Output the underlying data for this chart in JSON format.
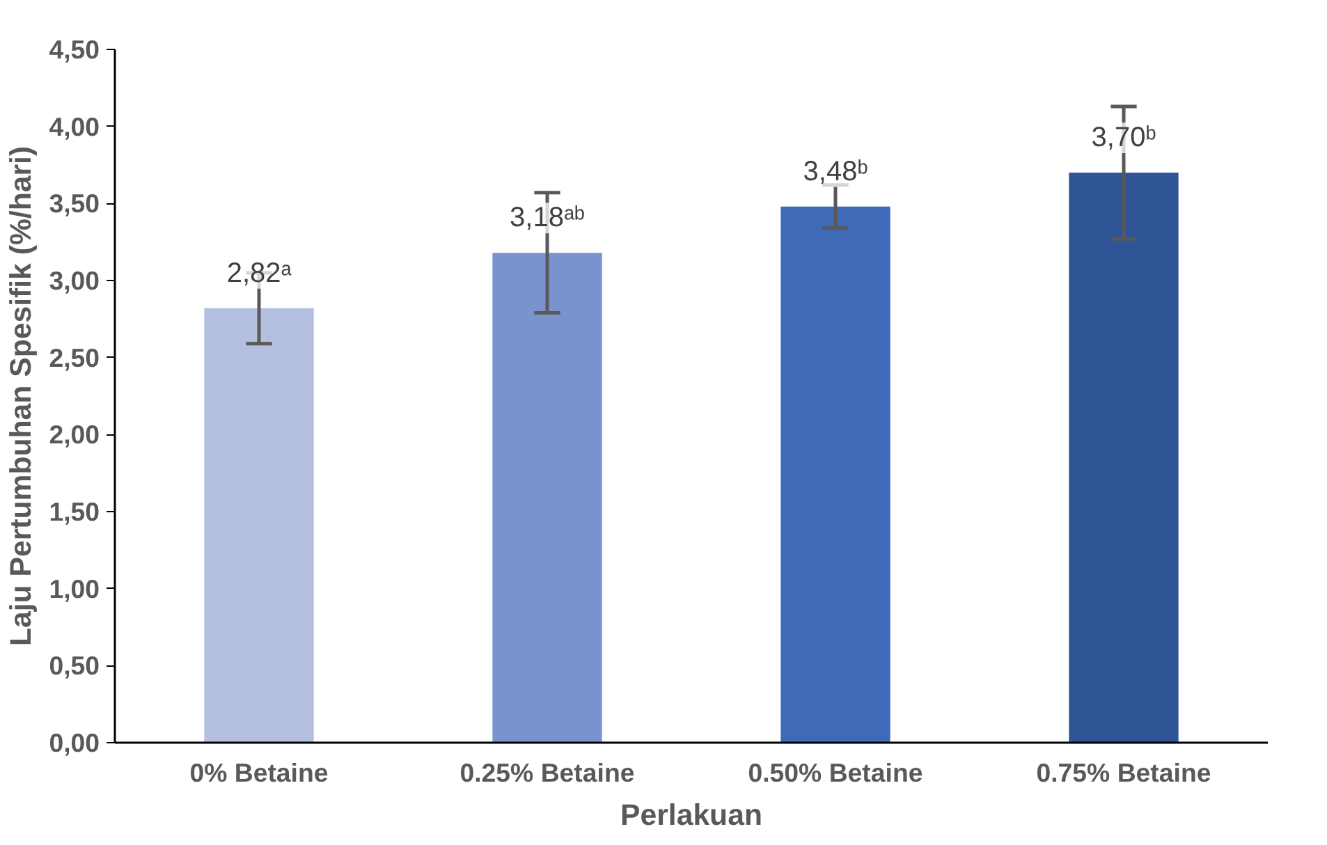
{
  "chart_data": {
    "type": "bar",
    "xlabel": "Perlakuan",
    "ylabel": "Laju Pertumbuhan Spesifik (%/hari)",
    "categories": [
      "0% Betaine",
      "0.25% Betaine",
      "0.50% Betaine",
      "0.75% Betaine"
    ],
    "values": [
      2.82,
      3.18,
      3.48,
      3.7
    ],
    "colors": [
      "#b4bfe0",
      "#7a93cf",
      "#3e6ab8",
      "#2f5597"
    ],
    "errors": [
      0.23,
      0.39,
      0.14,
      0.43
    ],
    "value_labels": [
      "2,82ᵃ",
      "3,18ᵃᵇ",
      "3,48ᵇ",
      "3,70ᵇ"
    ],
    "ylim": [
      0,
      4.5
    ],
    "yticks": [
      {
        "value": 0,
        "label": "0,00"
      },
      {
        "value": 0.5,
        "label": "0,50"
      },
      {
        "value": 1,
        "label": "1,00"
      },
      {
        "value": 1.5,
        "label": "1,50"
      },
      {
        "value": 2,
        "label": "2,00"
      },
      {
        "value": 2.5,
        "label": "2,50"
      },
      {
        "value": 3,
        "label": "3,00"
      },
      {
        "value": 3.5,
        "label": "3,50"
      },
      {
        "value": 4,
        "label": "4,00"
      },
      {
        "value": 4.5,
        "label": "4,50"
      }
    ],
    "grid": false
  }
}
